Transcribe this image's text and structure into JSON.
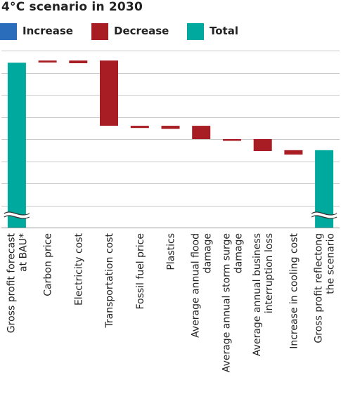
{
  "chart_data": {
    "type": "bar",
    "subtype": "waterfall",
    "title": "4°C scenario in 2030",
    "xlabel": "",
    "ylabel": "",
    "grid": true,
    "y_axis_labels_shown": false,
    "broken_axis": true,
    "legend_position": "top-left",
    "legend": [
      {
        "name": "Increase",
        "color": "#2a6ebb"
      },
      {
        "name": "Decrease",
        "color": "#a81c24"
      },
      {
        "name": "Total",
        "color": "#00a99d"
      }
    ],
    "ylim": [
      0,
      8
    ],
    "categories": [
      {
        "label_lines": [
          "Gross profit forecast",
          "at BAU*"
        ],
        "kind": "total",
        "start": 0,
        "end": 7.45
      },
      {
        "label_lines": [
          "Carbon price"
        ],
        "kind": "decrease",
        "start": 7.55,
        "end": 7.46
      },
      {
        "label_lines": [
          "Electricity cost"
        ],
        "kind": "decrease",
        "start": 7.55,
        "end": 7.43
      },
      {
        "label_lines": [
          "Transportation cost"
        ],
        "kind": "decrease",
        "start": 7.55,
        "end": 4.6
      },
      {
        "label_lines": [
          "Fossil fuel price"
        ],
        "kind": "decrease",
        "start": 4.6,
        "end": 4.5
      },
      {
        "label_lines": [
          "Plastics"
        ],
        "kind": "decrease",
        "start": 4.6,
        "end": 4.46
      },
      {
        "label_lines": [
          "Average annual flood",
          "damage"
        ],
        "kind": "decrease",
        "start": 4.6,
        "end": 4.0
      },
      {
        "label_lines": [
          "Average annual storm surge",
          "damage"
        ],
        "kind": "decrease",
        "start": 4.0,
        "end": 3.92
      },
      {
        "label_lines": [
          "Average annual business",
          "interruption loss"
        ],
        "kind": "decrease",
        "start": 4.0,
        "end": 3.46
      },
      {
        "label_lines": [
          "Increase in cooling cost"
        ],
        "kind": "decrease",
        "start": 3.5,
        "end": 3.3
      },
      {
        "label_lines": [
          "Gross profit reflectong",
          "the scenario"
        ],
        "kind": "total",
        "start": 0,
        "end": 3.5
      }
    ]
  }
}
